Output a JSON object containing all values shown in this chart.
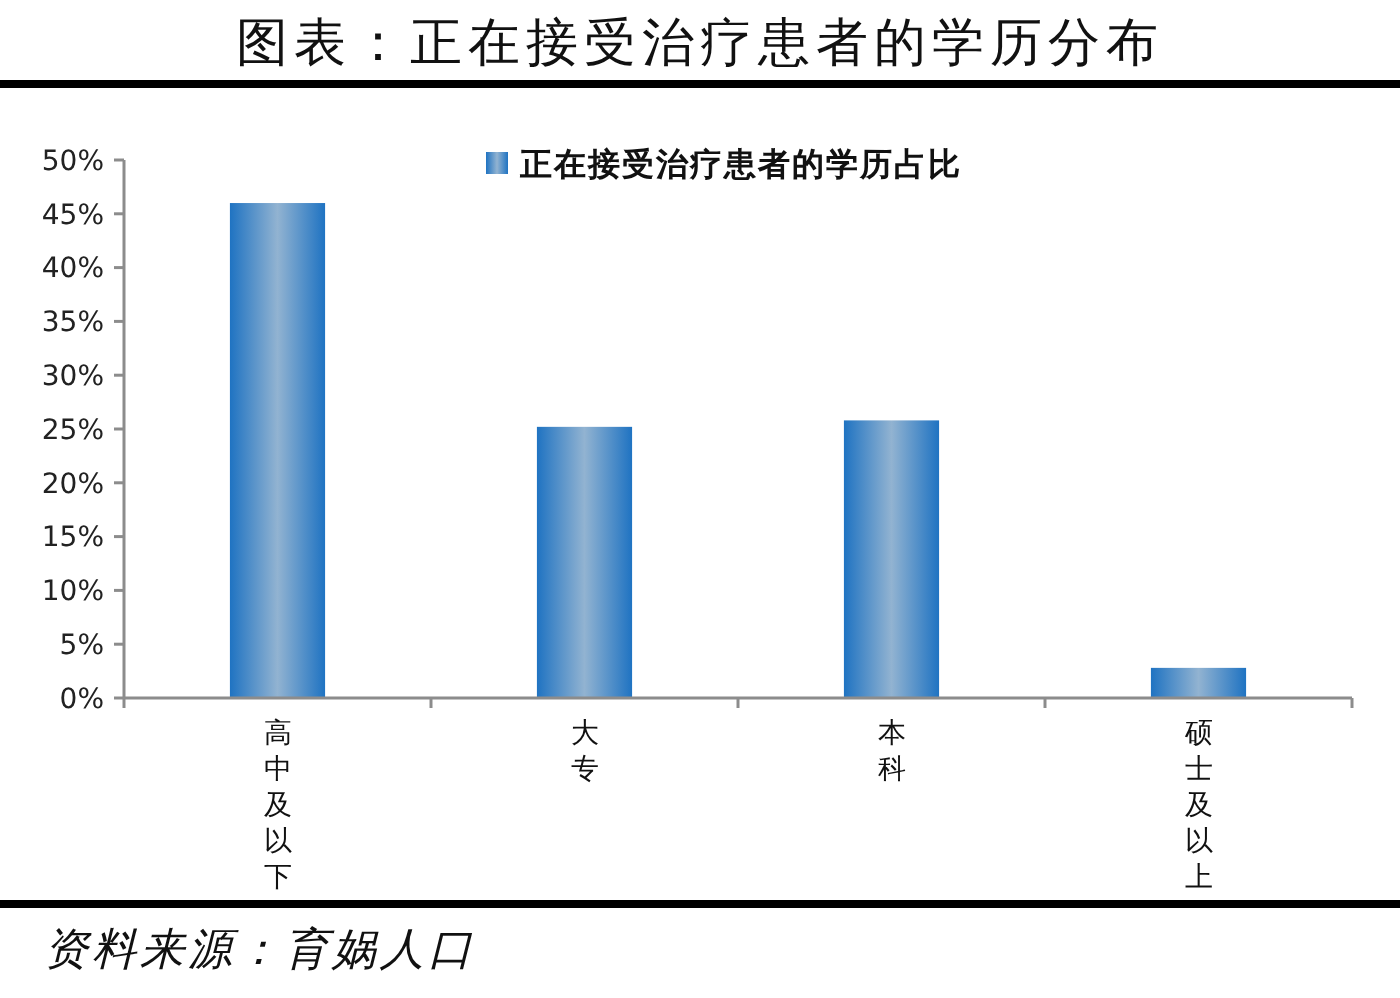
{
  "chart_data": {
    "type": "bar",
    "title": "图表：正在接受治疗患者的学历分布",
    "categories": [
      "高中及以下",
      "大专",
      "本科",
      "硕士及以上"
    ],
    "series": [
      {
        "name": "正在接受治疗患者的学历占比",
        "color": "#1f73c2",
        "values": [
          46,
          25.2,
          25.8,
          2.8
        ]
      }
    ],
    "ylim": [
      0,
      50
    ],
    "yticks": [
      {
        "value": 0,
        "label": "0%"
      },
      {
        "value": 5,
        "label": "5%"
      },
      {
        "value": 10,
        "label": "10%"
      },
      {
        "value": 15,
        "label": "15%"
      },
      {
        "value": 20,
        "label": "20%"
      },
      {
        "value": 25,
        "label": "25%"
      },
      {
        "value": 30,
        "label": "30%"
      },
      {
        "value": 35,
        "label": "35%"
      },
      {
        "value": 40,
        "label": "40%"
      },
      {
        "value": 45,
        "label": "45%"
      },
      {
        "value": 50,
        "label": "50%"
      }
    ],
    "grid": false,
    "legend": "top",
    "annotations": [
      "资料来源：育娲人口"
    ]
  }
}
